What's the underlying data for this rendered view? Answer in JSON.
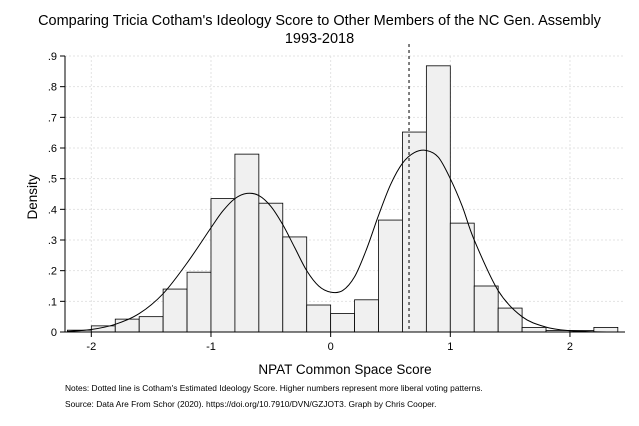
{
  "chart_data": {
    "type": "histogram",
    "title": "Comparing Tricia Cotham's Ideology Score to Other Members of the NC Gen. Assembly",
    "subtitle": "1993-2018",
    "xlabel": "NPAT Common Space Score",
    "ylabel": "Density",
    "xlim": [
      -2.22,
      2.46
    ],
    "ylim": [
      0,
      0.9
    ],
    "x_ticks": [
      -2,
      -1,
      0,
      1,
      2
    ],
    "x_tick_labels": [
      "-2",
      "-1",
      "0",
      "1",
      "2"
    ],
    "y_ticks": [
      0,
      0.1,
      0.2,
      0.3,
      0.4,
      0.5,
      0.6,
      0.7,
      0.8,
      0.9
    ],
    "y_tick_labels": [
      "0",
      ".1",
      ".2",
      ".3",
      ".4",
      ".5",
      ".6",
      ".7",
      ".8",
      ".9"
    ],
    "grid": true,
    "bin_width": 0.2,
    "bins": [
      {
        "x0": -2.2,
        "x1": -2.0,
        "density": 0.006
      },
      {
        "x0": -2.0,
        "x1": -1.8,
        "density": 0.02
      },
      {
        "x0": -1.8,
        "x1": -1.6,
        "density": 0.042
      },
      {
        "x0": -1.6,
        "x1": -1.4,
        "density": 0.05
      },
      {
        "x0": -1.4,
        "x1": -1.2,
        "density": 0.14
      },
      {
        "x0": -1.2,
        "x1": -1.0,
        "density": 0.195
      },
      {
        "x0": -1.0,
        "x1": -0.8,
        "density": 0.435
      },
      {
        "x0": -0.8,
        "x1": -0.6,
        "density": 0.58
      },
      {
        "x0": -0.6,
        "x1": -0.4,
        "density": 0.42
      },
      {
        "x0": -0.4,
        "x1": -0.2,
        "density": 0.31
      },
      {
        "x0": -0.2,
        "x1": 0.0,
        "density": 0.088
      },
      {
        "x0": 0.0,
        "x1": 0.2,
        "density": 0.06
      },
      {
        "x0": 0.2,
        "x1": 0.4,
        "density": 0.105
      },
      {
        "x0": 0.4,
        "x1": 0.6,
        "density": 0.365
      },
      {
        "x0": 0.6,
        "x1": 0.8,
        "density": 0.652
      },
      {
        "x0": 0.8,
        "x1": 1.0,
        "density": 0.868
      },
      {
        "x0": 1.0,
        "x1": 1.2,
        "density": 0.355
      },
      {
        "x0": 1.2,
        "x1": 1.4,
        "density": 0.15
      },
      {
        "x0": 1.4,
        "x1": 1.6,
        "density": 0.078
      },
      {
        "x0": 1.6,
        "x1": 1.8,
        "density": 0.015
      },
      {
        "x0": 1.8,
        "x1": 2.0,
        "density": 0.005
      },
      {
        "x0": 2.0,
        "x1": 2.2,
        "density": 0.005
      },
      {
        "x0": 2.2,
        "x1": 2.4,
        "density": 0.015
      }
    ],
    "density_curve": {
      "x": [
        -2.2,
        -2.0,
        -1.8,
        -1.6,
        -1.4,
        -1.2,
        -1.0,
        -0.9,
        -0.8,
        -0.7,
        -0.6,
        -0.5,
        -0.4,
        -0.3,
        -0.2,
        -0.1,
        0.0,
        0.1,
        0.2,
        0.3,
        0.4,
        0.5,
        0.6,
        0.7,
        0.8,
        0.9,
        1.0,
        1.1,
        1.2,
        1.4,
        1.6,
        1.8,
        2.0,
        2.2,
        2.4
      ],
      "y": [
        0.002,
        0.008,
        0.025,
        0.06,
        0.125,
        0.225,
        0.34,
        0.395,
        0.435,
        0.452,
        0.445,
        0.41,
        0.35,
        0.275,
        0.2,
        0.15,
        0.13,
        0.135,
        0.18,
        0.27,
        0.38,
        0.48,
        0.55,
        0.585,
        0.592,
        0.57,
        0.5,
        0.41,
        0.3,
        0.135,
        0.05,
        0.016,
        0.004,
        0.001,
        0.0
      ]
    },
    "reference_line": {
      "x": 0.655,
      "style": "dotted"
    },
    "colors": {
      "bar_fill": "#f0f0f0",
      "bar_stroke": "#000000",
      "curve": "#000000",
      "grid": "#e3e3e3"
    },
    "notes": [
      "Notes: Dotted line is Cotham's Estimated Ideology Score. Higher numbers represent more liberal voting patterns.",
      "Source: Data Are From Schor (2020). https://doi.org/10.7910/DVN/GZJOT3. Graph by Chris Cooper."
    ]
  }
}
